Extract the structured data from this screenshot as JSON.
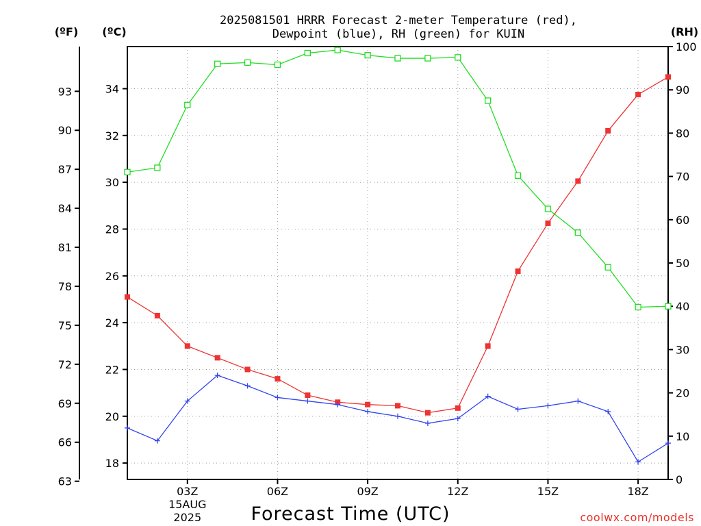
{
  "chart_data": {
    "type": "line",
    "title_lines": [
      "2025081501 HRRR Forecast 2-meter Temperature (red),",
      "Dewpoint (blue), RH (green) for KUIN"
    ],
    "xlabel": "Forecast Time (UTC)",
    "unit_labels": {
      "fahrenheit": "(ºF)",
      "celsius": "(ºC)",
      "rh": "(RH)"
    },
    "x_hours": [
      1,
      2,
      3,
      4,
      5,
      6,
      7,
      8,
      9,
      10,
      11,
      12,
      13,
      14,
      15,
      16,
      17,
      18,
      19
    ],
    "x_range": [
      1,
      19
    ],
    "x_ticks": [
      {
        "hour": 3,
        "label": "03Z"
      },
      {
        "hour": 6,
        "label": "06Z"
      },
      {
        "hour": 9,
        "label": "09Z"
      },
      {
        "hour": 12,
        "label": "12Z"
      },
      {
        "hour": 15,
        "label": "15Z"
      },
      {
        "hour": 18,
        "label": "18Z"
      }
    ],
    "x_date_label": [
      "15AUG",
      "2025"
    ],
    "x_date_hour": 3,
    "y_celsius_range": [
      17.3,
      35.8
    ],
    "y_celsius_ticks": [
      "18",
      "20",
      "22",
      "24",
      "26",
      "28",
      "30",
      "32",
      "34"
    ],
    "y_fahrenheit_ticks": [
      "63",
      "66",
      "69",
      "72",
      "75",
      "78",
      "81",
      "84",
      "87",
      "90",
      "93"
    ],
    "y_rh_range": [
      0,
      100
    ],
    "y_rh_ticks": [
      "0",
      "10",
      "20",
      "30",
      "40",
      "50",
      "60",
      "70",
      "80",
      "90",
      "100"
    ],
    "grid": true,
    "series": [
      {
        "name": "Temperature",
        "axis": "celsius",
        "color": "#ee3333",
        "marker": "filled-square",
        "values": [
          25.1,
          24.3,
          23.0,
          22.5,
          22.0,
          21.6,
          20.9,
          20.6,
          20.5,
          20.45,
          20.15,
          20.35,
          23.0,
          26.2,
          28.25,
          30.05,
          32.2,
          33.75,
          34.5
        ]
      },
      {
        "name": "Dewpoint",
        "axis": "celsius",
        "color": "#3344ee",
        "marker": "plus",
        "values": [
          19.5,
          18.95,
          20.65,
          21.75,
          21.3,
          20.8,
          20.65,
          20.5,
          20.2,
          20.0,
          19.7,
          19.9,
          20.85,
          20.3,
          20.45,
          20.65,
          20.2,
          18.05,
          18.85
        ]
      },
      {
        "name": "RH",
        "axis": "rh",
        "color": "#22dd22",
        "marker": "open-square",
        "values": [
          71,
          72,
          86.5,
          96,
          96.3,
          95.8,
          98.5,
          99.2,
          98,
          97.3,
          97.3,
          97.5,
          87.5,
          70.2,
          62.5,
          57,
          49,
          39.8,
          40
        ]
      }
    ]
  },
  "watermark": "coolwx.com/models"
}
